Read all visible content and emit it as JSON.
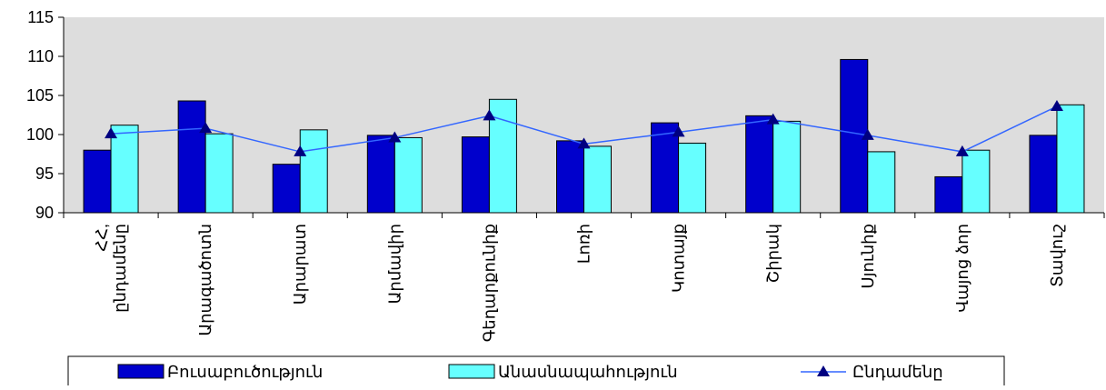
{
  "chart_data": {
    "type": "bar",
    "categories": [
      "ՀՀ, ընդամենը",
      "Արագածոտն",
      "Արարատ",
      "Արմավիր",
      "Գեղարքունիք",
      "Լոռի",
      "Կոտայք",
      "Շիրակ",
      "Սյունիք",
      "Վայոց ձոր",
      "Տավուշ"
    ],
    "series": [
      {
        "name": "Բուսաբուծություն",
        "type": "bar",
        "color": "#0000cc",
        "values": [
          98.0,
          104.3,
          96.2,
          99.9,
          99.7,
          99.2,
          101.5,
          102.4,
          109.6,
          94.6,
          99.9
        ]
      },
      {
        "name": "Անասնապահություն",
        "type": "bar",
        "color": "#66ffff",
        "values": [
          101.2,
          100.1,
          100.6,
          99.6,
          104.5,
          98.5,
          98.9,
          101.7,
          97.8,
          98.0,
          103.8
        ]
      },
      {
        "name": "Ընդամենը",
        "type": "line",
        "color": "#3366ff",
        "marker": "triangle",
        "marker_color": "#000080",
        "values": [
          100.1,
          100.8,
          97.8,
          99.6,
          102.4,
          98.8,
          100.3,
          101.9,
          99.9,
          97.8,
          103.6
        ]
      }
    ],
    "yticks": [
      "115",
      "110",
      "105",
      "100",
      "95",
      "90"
    ],
    "ylim": [
      90,
      115
    ],
    "grid": false,
    "legend_position": "bottom",
    "plot_background": "#dddddd"
  }
}
